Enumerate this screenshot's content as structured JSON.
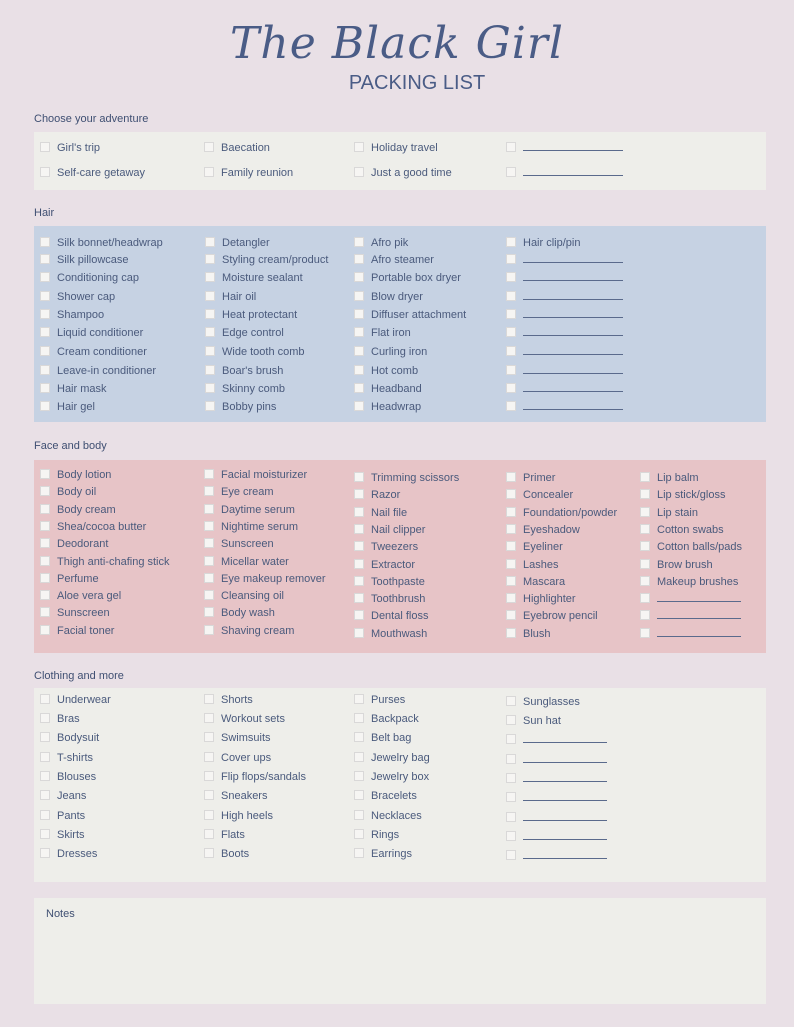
{
  "header": {
    "title": "The Black Girl",
    "subtitle": "PACKING LIST"
  },
  "sections": {
    "adventure": {
      "label": "Choose your adventure",
      "columns": [
        [
          "Girl's trip",
          "Self-care getaway"
        ],
        [
          "Baecation",
          "Family reunion"
        ],
        [
          "Holiday travel",
          "Just a good time"
        ],
        [
          "",
          ""
        ]
      ]
    },
    "hair": {
      "label": "Hair",
      "columns": [
        [
          "Silk bonnet/headwrap",
          "Silk pillowcase",
          "Conditioning cap",
          "Shower cap",
          "Shampoo",
          "Liquid conditioner",
          "Cream conditioner",
          "Leave-in conditioner",
          "Hair mask",
          "Hair gel"
        ],
        [
          "Detangler",
          "Styling cream/product",
          "Moisture sealant",
          "Hair oil",
          "Heat protectant",
          "Edge control",
          "Wide tooth comb",
          "Boar's brush",
          "Skinny comb",
          "Bobby pins"
        ],
        [
          "Afro pik",
          "Afro steamer",
          "Portable box dryer",
          "Blow dryer",
          "Diffuser attachment",
          "Flat iron",
          "Curling iron",
          "Hot comb",
          "Headband",
          "Headwrap"
        ],
        [
          "Hair clip/pin",
          "",
          "",
          "",
          "",
          "",
          "",
          "",
          "",
          ""
        ]
      ]
    },
    "face_body": {
      "label": "Face and body",
      "columns": [
        [
          "Body lotion",
          "Body oil",
          "Body cream",
          "Shea/cocoa butter",
          "Deodorant",
          "Thigh anti-chafing stick",
          "Perfume",
          "Aloe vera gel",
          "Sunscreen",
          "Facial toner"
        ],
        [
          "Facial moisturizer",
          "Eye cream",
          "Daytime serum",
          "Nightime serum",
          "Sunscreen",
          "Micellar water",
          "Eye makeup remover",
          "Cleansing oil",
          "Body wash",
          "Shaving cream"
        ],
        [
          "Trimming scissors",
          "Razor",
          "Nail file",
          "Nail clipper",
          "Tweezers",
          "Extractor",
          "Toothpaste",
          "Toothbrush",
          "Dental floss",
          "Mouthwash"
        ],
        [
          "Primer",
          "Concealer",
          "Foundation/powder",
          "Eyeshadow",
          "Eyeliner",
          "Lashes",
          "Mascara",
          "Highlighter",
          "Eyebrow pencil",
          "Blush"
        ],
        [
          "Lip balm",
          "Lip stick/gloss",
          "Lip stain",
          "Cotton swabs",
          "Cotton balls/pads",
          "Brow brush",
          "Makeup brushes",
          "",
          "",
          ""
        ]
      ]
    },
    "clothing": {
      "label": "Clothing and more",
      "columns": [
        [
          "Underwear",
          "Bras",
          "Bodysuit",
          "T-shirts",
          "Blouses",
          "Jeans",
          "Pants",
          "Skirts",
          "Dresses"
        ],
        [
          "Shorts",
          "Workout sets",
          "Swimsuits",
          "Cover ups",
          "Flip flops/sandals",
          "Sneakers",
          "High heels",
          "Flats",
          "Boots"
        ],
        [
          "Purses",
          "Backpack",
          "Belt bag",
          "Jewelry bag",
          "Jewelry box",
          "Bracelets",
          "Necklaces",
          "Rings",
          "Earrings"
        ],
        [
          "Sunglasses",
          "Sun hat",
          "",
          "",
          "",
          "",
          "",
          "",
          ""
        ]
      ]
    },
    "notes": {
      "label": "Notes"
    }
  },
  "colors": {
    "background": "#e9e0e6",
    "cream_panel": "#eeeeea",
    "hair_panel": "#c6d2e3",
    "face_panel": "#e7c4c7",
    "text": "#4a5a7c"
  }
}
